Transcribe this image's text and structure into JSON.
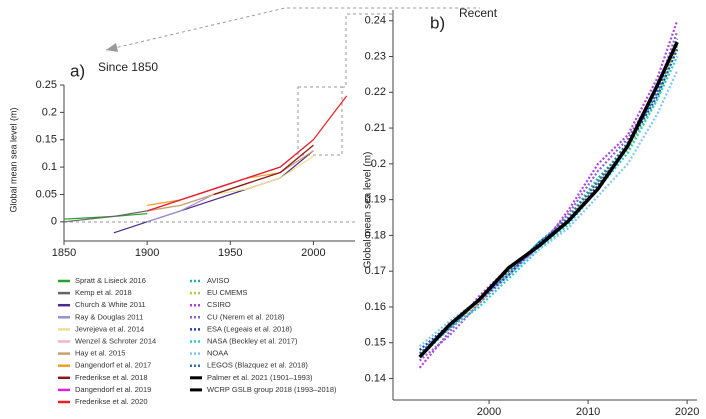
{
  "chart_data": [
    {
      "type": "line",
      "label": "a)",
      "title": "Since 1850",
      "y_label": "Global mean sea level (m)",
      "x": [
        1850,
        1880,
        1900,
        1920,
        1940,
        1960,
        1980,
        2000,
        2020
      ],
      "xlim": [
        1850,
        2025
      ],
      "ylim": [
        -0.035,
        0.25
      ],
      "xticks": [
        1850,
        1900,
        1950,
        2000
      ],
      "yticks": [
        0,
        0.05,
        0.1,
        0.15,
        0.2,
        0.25
      ],
      "series": [
        {
          "name": "Spratt & Lisieck 2016",
          "color": "#2ca02c",
          "values": [
            0.005,
            0.01,
            0.015,
            null,
            null,
            null,
            null,
            null,
            null
          ]
        },
        {
          "name": "Kemp et al. 2018",
          "color": "#666666",
          "values": [
            0.0,
            0.01,
            0.02,
            0.04,
            0.06,
            0.08,
            0.1,
            null,
            null
          ]
        },
        {
          "name": "Church & White 2011",
          "color": "#4b2a8c",
          "values": [
            null,
            -0.02,
            0.0,
            0.02,
            0.04,
            0.06,
            0.08,
            0.13,
            null
          ]
        },
        {
          "name": "Ray & Douglas 2011",
          "color": "#9b8fd6",
          "values": [
            null,
            null,
            0.0,
            0.02,
            0.05,
            0.07,
            0.09,
            0.14,
            null
          ]
        },
        {
          "name": "Jevrejeva et al. 2014",
          "color": "#efe08f",
          "values": [
            null,
            null,
            0.02,
            0.03,
            0.05,
            0.06,
            0.08,
            0.12,
            null
          ]
        },
        {
          "name": "Wenzel & Schroter 2014",
          "color": "#f2b8c6",
          "values": [
            null,
            null,
            null,
            0.03,
            0.05,
            0.07,
            0.09,
            0.14,
            null
          ]
        },
        {
          "name": "Hay et al. 2015",
          "color": "#c8a070",
          "values": [
            null,
            null,
            0.02,
            0.03,
            0.05,
            0.07,
            0.09,
            0.13,
            null
          ]
        },
        {
          "name": "Dangendorf et al. 2017",
          "color": "#f0a020",
          "values": [
            null,
            null,
            0.03,
            0.04,
            0.06,
            0.08,
            0.09,
            0.14,
            null
          ]
        },
        {
          "name": "Frederikse et al. 2018",
          "color": "#8b1a1a",
          "values": [
            null,
            null,
            null,
            null,
            0.05,
            0.07,
            0.09,
            0.14,
            null
          ]
        },
        {
          "name": "Dangendorf et al. 2019",
          "color": "#e020e0",
          "values": [
            null,
            null,
            0.02,
            0.04,
            0.06,
            0.08,
            0.1,
            0.15,
            null
          ]
        },
        {
          "name": "Frederikse et al. 2020",
          "color": "#e82020",
          "values": [
            null,
            null,
            0.02,
            0.04,
            0.06,
            0.08,
            0.1,
            0.15,
            0.23
          ]
        }
      ]
    },
    {
      "type": "line",
      "label": "b)",
      "title": "Recent",
      "y_label": "Global mean sea level (m)",
      "x": [
        1993,
        1996,
        1999,
        2002,
        2005,
        2008,
        2011,
        2014,
        2017,
        2019
      ],
      "xlim": [
        1990.3,
        2021
      ],
      "ylim": [
        0.134,
        0.243
      ],
      "xticks": [
        2000,
        2010,
        2020
      ],
      "yticks": [
        0.14,
        0.15,
        0.16,
        0.17,
        0.18,
        0.19,
        0.2,
        0.21,
        0.22,
        0.23,
        0.24
      ],
      "series": [
        {
          "name": "AVISO",
          "color": "#20b0b0",
          "dotted": true,
          "values": [
            0.147,
            0.155,
            0.162,
            0.17,
            0.178,
            0.185,
            0.196,
            0.205,
            0.22,
            0.234
          ]
        },
        {
          "name": "EU CMEMS",
          "color": "#a8d040",
          "dotted": true,
          "values": [
            0.146,
            0.154,
            0.161,
            0.17,
            0.177,
            0.184,
            0.195,
            0.204,
            0.218,
            0.233
          ]
        },
        {
          "name": "CSIRO",
          "color": "#b040e0",
          "dotted": true,
          "values": [
            0.143,
            0.153,
            0.163,
            0.171,
            0.176,
            0.187,
            0.2,
            0.208,
            0.224,
            0.24
          ]
        },
        {
          "name": "CU (Nerem et al. 2018)",
          "color": "#9060d0",
          "dotted": true,
          "values": [
            0.145,
            0.152,
            0.161,
            0.169,
            0.177,
            0.186,
            0.198,
            0.207,
            0.221,
            0.237
          ]
        },
        {
          "name": "ESA (Legeais et al. 2018)",
          "color": "#2040c0",
          "dotted": true,
          "values": [
            0.148,
            0.155,
            0.162,
            0.169,
            0.178,
            0.184,
            0.194,
            0.205,
            0.219,
            0.232
          ]
        },
        {
          "name": "NASA (Beckley et al. 2017)",
          "color": "#20d0d0",
          "dotted": true,
          "values": [
            0.146,
            0.154,
            0.16,
            0.168,
            0.176,
            0.183,
            0.193,
            0.203,
            0.218,
            0.23
          ]
        },
        {
          "name": "NOAA",
          "color": "#80c8f0",
          "dotted": true,
          "values": [
            0.149,
            0.156,
            0.162,
            0.169,
            0.176,
            0.182,
            0.191,
            0.2,
            0.214,
            0.226
          ]
        },
        {
          "name": "LEGOS (Blazquez et al. 2018)",
          "color": "#3070a0",
          "dotted": true,
          "values": [
            0.147,
            0.154,
            0.162,
            0.17,
            0.177,
            0.185,
            0.195,
            0.206,
            0.22,
            0.235
          ]
        },
        {
          "name": "Palmer et al. 2021 (1901–1993)",
          "color": "#000000",
          "dotted": false,
          "values": [
            0.146,
            null,
            null,
            null,
            null,
            null,
            null,
            null,
            null,
            null
          ]
        },
        {
          "name": "WCRP GSLB group 2018 (1993–2018)",
          "color": "#000000",
          "dotted": false,
          "values": [
            0.146,
            0.155,
            0.162,
            0.171,
            0.177,
            0.184,
            0.193,
            0.205,
            0.222,
            0.234
          ]
        }
      ]
    }
  ]
}
